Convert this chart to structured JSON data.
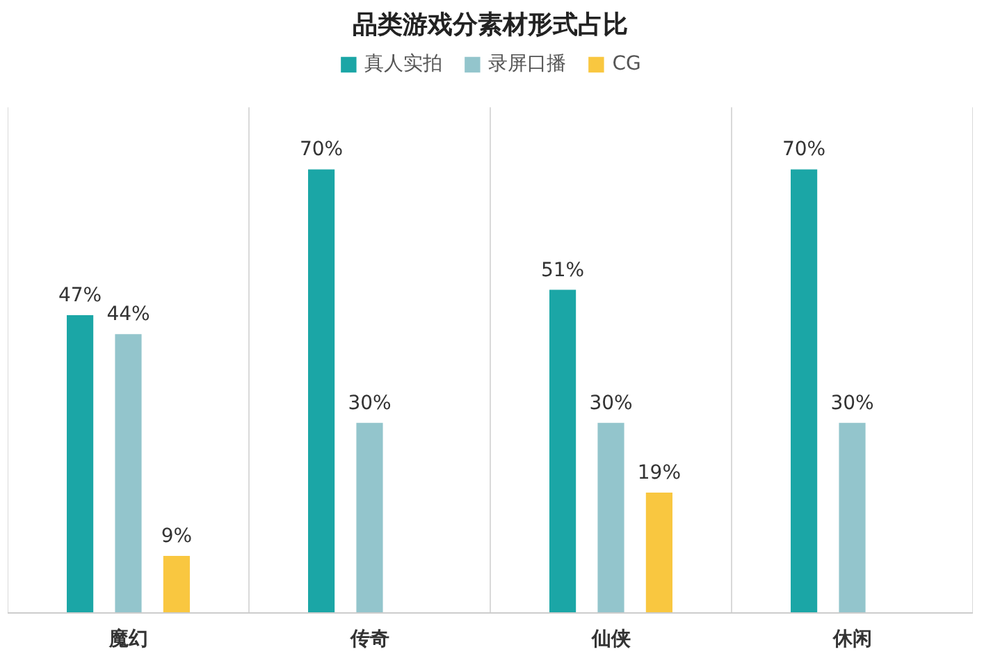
{
  "chart_data": {
    "type": "bar",
    "title": "品类游戏分素材形式占比",
    "categories": [
      "魔幻",
      "传奇",
      "仙侠",
      "休闲"
    ],
    "series": [
      {
        "name": "真人实拍",
        "color": "#1ba6a6",
        "values": [
          47,
          70,
          51,
          70
        ],
        "value_labels": [
          "47%",
          "70%",
          "51%",
          "70%"
        ]
      },
      {
        "name": "录屏口播",
        "color": "#93c5cc",
        "values": [
          44,
          30,
          30,
          30
        ],
        "value_labels": [
          "44%",
          "30%",
          "30%",
          "30%"
        ]
      },
      {
        "name": "CG",
        "color": "#f9c740",
        "values": [
          9,
          null,
          19,
          null
        ],
        "value_labels": [
          "9%",
          null,
          "19%",
          null
        ]
      }
    ],
    "legend": "top",
    "grid": "x",
    "tick_labels": "x"
  }
}
